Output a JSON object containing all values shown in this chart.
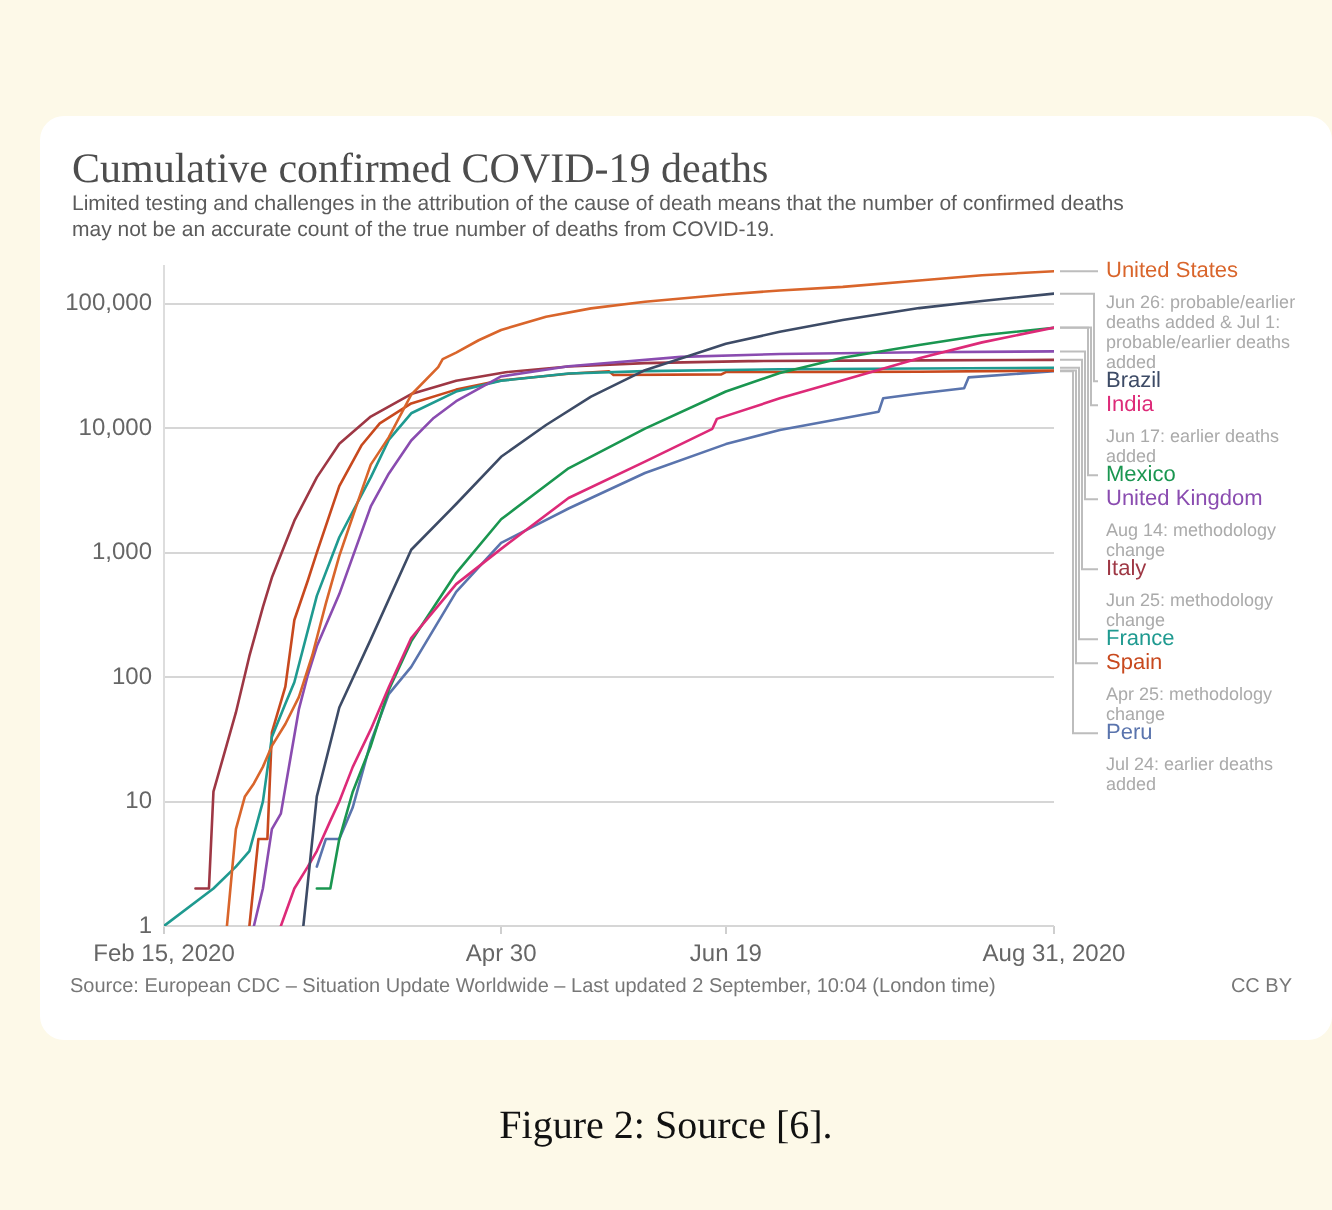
{
  "chart_data": {
    "type": "line",
    "title": "Cumulative confirmed COVID-19 deaths",
    "subtitle": "Limited testing and challenges in the attribution of the cause of death means that the number of confirmed deaths may not be an accurate count of the true number of deaths from COVID-19.",
    "xlim": [
      "2020-02-15",
      "2020-08-31"
    ],
    "xticks": [
      {
        "value": "2020-02-15",
        "label": "Feb 15, 2020"
      },
      {
        "value": "2020-04-30",
        "label": "Apr 30"
      },
      {
        "value": "2020-06-19",
        "label": "Jun 19"
      },
      {
        "value": "2020-08-31",
        "label": "Aug 31, 2020"
      }
    ],
    "log": "y",
    "ylim": [
      1,
      200000
    ],
    "yticks": [
      1,
      10,
      100,
      {
        "value": 1000,
        "label": "1,000"
      },
      {
        "value": 10000,
        "label": "10,000"
      },
      {
        "value": 100000,
        "label": "100,000"
      }
    ],
    "grid": "y",
    "marker": "none",
    "line_style": "solid",
    "series": [
      {
        "name": "United States",
        "color": "#d9652b",
        "x": [
          "2020-02-29",
          "2020-03-02",
          "2020-03-04",
          "2020-03-06",
          "2020-03-08",
          "2020-03-10",
          "2020-03-13",
          "2020-03-16",
          "2020-03-19",
          "2020-03-22",
          "2020-03-25",
          "2020-03-28",
          "2020-04-01",
          "2020-04-05",
          "2020-04-10",
          "2020-04-16",
          "2020-04-17",
          "2020-04-20",
          "2020-04-25",
          "2020-04-30",
          "2020-05-10",
          "2020-05-20",
          "2020-06-01",
          "2020-06-19",
          "2020-07-01",
          "2020-07-15",
          "2020-08-01",
          "2020-08-15",
          "2020-08-31"
        ],
        "values": [
          1,
          6,
          11,
          14,
          19,
          28,
          42,
          69,
          150,
          390,
          944,
          1963,
          5102,
          8454,
          18600,
          31000,
          36000,
          40600,
          51000,
          61700,
          78700,
          92000,
          104000,
          119000,
          128000,
          137000,
          154000,
          170000,
          183000
        ]
      },
      {
        "name": "Brazil",
        "color": "#3d4b66",
        "x": [
          "2020-03-17",
          "2020-03-20",
          "2020-03-25",
          "2020-04-01",
          "2020-04-10",
          "2020-04-20",
          "2020-04-30",
          "2020-05-10",
          "2020-05-20",
          "2020-06-01",
          "2020-06-19",
          "2020-07-01",
          "2020-07-15",
          "2020-08-01",
          "2020-08-15",
          "2020-08-31"
        ],
        "values": [
          1,
          11,
          57,
          201,
          1056,
          2462,
          5901,
          10627,
          17971,
          29314,
          47748,
          59594,
          74133,
          92475,
          105463,
          120828
        ]
      },
      {
        "name": "India",
        "color": "#dd2a78",
        "x": [
          "2020-03-12",
          "2020-03-15",
          "2020-03-18",
          "2020-03-20",
          "2020-03-23",
          "2020-03-25",
          "2020-03-28",
          "2020-04-01",
          "2020-04-05",
          "2020-04-10",
          "2020-04-20",
          "2020-04-30",
          "2020-05-15",
          "2020-06-01",
          "2020-06-16",
          "2020-06-17",
          "2020-07-01",
          "2020-07-15",
          "2020-08-01",
          "2020-08-15",
          "2020-08-31"
        ],
        "values": [
          1,
          2,
          3,
          4,
          7,
          10,
          19,
          38,
          83,
          206,
          559,
          1074,
          2752,
          5394,
          9900,
          11903,
          17400,
          24309,
          36511,
          49036,
          64469
        ]
      },
      {
        "name": "Mexico",
        "color": "#1a9650",
        "x": [
          "2020-03-20",
          "2020-03-23",
          "2020-03-25",
          "2020-03-28",
          "2020-04-01",
          "2020-04-05",
          "2020-04-10",
          "2020-04-20",
          "2020-04-30",
          "2020-05-15",
          "2020-06-01",
          "2020-06-19",
          "2020-07-01",
          "2020-07-15",
          "2020-08-01",
          "2020-08-15",
          "2020-08-31"
        ],
        "values": [
          2,
          2,
          5,
          12,
          28,
          79,
          194,
          686,
          1859,
          4767,
          9930,
          19747,
          27769,
          36906,
          46688,
          55908,
          64158
        ]
      },
      {
        "name": "United Kingdom",
        "color": "#8a4cb0",
        "x": [
          "2020-03-06",
          "2020-03-08",
          "2020-03-10",
          "2020-03-12",
          "2020-03-14",
          "2020-03-16",
          "2020-03-18",
          "2020-03-20",
          "2020-03-25",
          "2020-04-01",
          "2020-04-05",
          "2020-04-10",
          "2020-04-15",
          "2020-04-20",
          "2020-04-30",
          "2020-05-15",
          "2020-06-09",
          "2020-07-01",
          "2020-08-01",
          "2020-08-31"
        ],
        "values": [
          1,
          2,
          6,
          8,
          21,
          55,
          104,
          177,
          465,
          2352,
          4313,
          7978,
          12107,
          16509,
          26097,
          31500,
          37500,
          39500,
          40800,
          41499
        ]
      },
      {
        "name": "Italy",
        "color": "#9e3744",
        "x": [
          "2020-02-22",
          "2020-02-25",
          "2020-02-26",
          "2020-02-29",
          "2020-03-02",
          "2020-03-05",
          "2020-03-08",
          "2020-03-10",
          "2020-03-15",
          "2020-03-20",
          "2020-03-25",
          "2020-04-01",
          "2020-04-10",
          "2020-04-20",
          "2020-05-01",
          "2020-05-15",
          "2020-06-01",
          "2020-06-24",
          "2020-06-25",
          "2020-07-15",
          "2020-08-01",
          "2020-08-31"
        ],
        "values": [
          2,
          2,
          12,
          29,
          52,
          148,
          366,
          631,
          1809,
          4032,
          7503,
          12428,
          18849,
          24114,
          28236,
          31368,
          33415,
          34644,
          34678,
          34997,
          35141,
          35483
        ]
      },
      {
        "name": "France",
        "color": "#1f9a90",
        "x": [
          "2020-02-15",
          "2020-02-26",
          "2020-03-02",
          "2020-03-05",
          "2020-03-08",
          "2020-03-10",
          "2020-03-13",
          "2020-03-15",
          "2020-03-20",
          "2020-03-25",
          "2020-04-01",
          "2020-04-05",
          "2020-04-10",
          "2020-04-20",
          "2020-04-30",
          "2020-05-15",
          "2020-06-01",
          "2020-07-01",
          "2020-08-01",
          "2020-08-31"
        ],
        "values": [
          1,
          2,
          3,
          4,
          10,
          33,
          61,
          91,
          450,
          1331,
          4032,
          8078,
          13197,
          19718,
          24087,
          27529,
          28802,
          29843,
          30265,
          30635
        ]
      },
      {
        "name": "Spain",
        "color": "#c8491e",
        "x": [
          "2020-03-05",
          "2020-03-07",
          "2020-03-09",
          "2020-03-10",
          "2020-03-13",
          "2020-03-15",
          "2020-03-18",
          "2020-03-20",
          "2020-03-25",
          "2020-03-30",
          "2020-04-03",
          "2020-04-10",
          "2020-04-20",
          "2020-04-30",
          "2020-05-15",
          "2020-05-24",
          "2020-05-25",
          "2020-06-18",
          "2020-06-19",
          "2020-07-15",
          "2020-08-01",
          "2020-08-31"
        ],
        "values": [
          1,
          5,
          5,
          36,
          84,
          288,
          598,
          1002,
          3434,
          7340,
          10935,
          15843,
          20453,
          24275,
          27459,
          28752,
          26834,
          27136,
          28315,
          28416,
          28445,
          29094
        ]
      },
      {
        "name": "Peru",
        "color": "#5a74ad",
        "x": [
          "2020-03-20",
          "2020-03-22",
          "2020-03-25",
          "2020-03-28",
          "2020-04-01",
          "2020-04-05",
          "2020-04-10",
          "2020-04-20",
          "2020-04-30",
          "2020-05-15",
          "2020-06-01",
          "2020-06-19",
          "2020-07-01",
          "2020-07-23",
          "2020-07-24",
          "2020-08-01",
          "2020-08-11",
          "2020-08-12",
          "2020-08-31"
        ],
        "values": [
          3,
          5,
          5,
          9,
          30,
          73,
          121,
          484,
          1200,
          2267,
          4371,
          7461,
          9677,
          13600,
          17455,
          19021,
          21000,
          25648,
          28788
        ]
      }
    ],
    "annotations": [
      "Source: European CDC – Situation Update Worldwide – Last updated 2 September, 10:04 (London time)",
      "CC BY",
      "Figure 2: Source [6].",
      {
        "text": "Jun 26: probable/earlier deaths added & Jul 1: probable/earlier deaths added",
        "x": "2020-08-31",
        "y": 183000
      },
      {
        "text": "Jun 17: earlier deaths added",
        "x": "2020-08-31",
        "y": 64469
      },
      {
        "text": "Aug 14: methodology change",
        "x": "2020-08-31",
        "y": 41499
      },
      {
        "text": "Jun 25: methodology change",
        "x": "2020-08-31",
        "y": 35483
      },
      {
        "text": "Apr 25: methodology change",
        "x": "2020-08-31",
        "y": 29094
      },
      {
        "text": "Jul 24: earlier deaths added",
        "x": "2020-08-31",
        "y": 28788
      }
    ]
  }
}
